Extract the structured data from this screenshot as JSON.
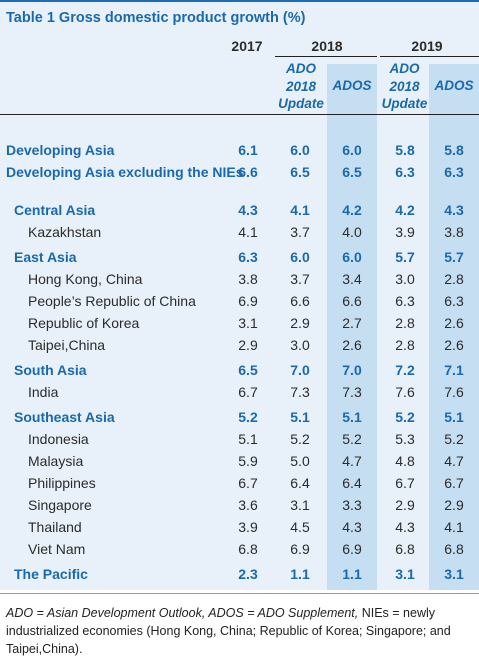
{
  "title": "Table 1  Gross domestic product growth (%)",
  "headers": {
    "y2017": "2017",
    "y2018": "2018",
    "y2019": "2019",
    "ado_2018": "ADO",
    "ado_2018_b": "2018",
    "ado_2018_c": "Update",
    "ados_2018": "ADOS",
    "ado_2019": "ADO",
    "ado_2019_b": "2018",
    "ado_2019_c": "Update",
    "ados_2019": "ADOS"
  },
  "rows": [
    {
      "label": "Developing Asia",
      "kind": "agg",
      "values": [
        "6.1",
        "6.0",
        "6.0",
        "5.8",
        "5.8"
      ]
    },
    {
      "label": "Developing Asia excluding the NIEs",
      "kind": "agg",
      "values": [
        "6.6",
        "6.5",
        "6.5",
        "6.3",
        "6.3"
      ]
    },
    {
      "label": "Central Asia",
      "kind": "sub",
      "values": [
        "4.3",
        "4.1",
        "4.2",
        "4.2",
        "4.3"
      ]
    },
    {
      "label": "Kazakhstan",
      "kind": "cty",
      "values": [
        "4.1",
        "3.7",
        "4.0",
        "3.9",
        "3.8"
      ]
    },
    {
      "label": "East Asia",
      "kind": "sub",
      "values": [
        "6.3",
        "6.0",
        "6.0",
        "5.7",
        "5.7"
      ]
    },
    {
      "label": "Hong Kong, China",
      "kind": "cty",
      "values": [
        "3.8",
        "3.7",
        "3.4",
        "3.0",
        "2.8"
      ]
    },
    {
      "label": "People’s Republic of China",
      "kind": "cty",
      "values": [
        "6.9",
        "6.6",
        "6.6",
        "6.3",
        "6.3"
      ]
    },
    {
      "label": "Republic of Korea",
      "kind": "cty",
      "values": [
        "3.1",
        "2.9",
        "2.7",
        "2.8",
        "2.6"
      ]
    },
    {
      "label": "Taipei,China",
      "kind": "cty",
      "values": [
        "2.9",
        "3.0",
        "2.6",
        "2.8",
        "2.6"
      ]
    },
    {
      "label": "South Asia",
      "kind": "sub",
      "values": [
        "6.5",
        "7.0",
        "7.0",
        "7.2",
        "7.1"
      ]
    },
    {
      "label": "India",
      "kind": "cty",
      "values": [
        "6.7",
        "7.3",
        "7.3",
        "7.6",
        "7.6"
      ]
    },
    {
      "label": "Southeast Asia",
      "kind": "sub",
      "values": [
        "5.2",
        "5.1",
        "5.1",
        "5.2",
        "5.1"
      ]
    },
    {
      "label": "Indonesia",
      "kind": "cty",
      "values": [
        "5.1",
        "5.2",
        "5.2",
        "5.3",
        "5.2"
      ]
    },
    {
      "label": "Malaysia",
      "kind": "cty",
      "values": [
        "5.9",
        "5.0",
        "4.7",
        "4.8",
        "4.7"
      ]
    },
    {
      "label": "Philippines",
      "kind": "cty",
      "values": [
        "6.7",
        "6.4",
        "6.4",
        "6.7",
        "6.7"
      ]
    },
    {
      "label": "Singapore",
      "kind": "cty",
      "values": [
        "3.6",
        "3.1",
        "3.3",
        "2.9",
        "2.9"
      ]
    },
    {
      "label": "Thailand",
      "kind": "cty",
      "values": [
        "3.9",
        "4.5",
        "4.3",
        "4.3",
        "4.1"
      ]
    },
    {
      "label": "Viet Nam",
      "kind": "cty",
      "values": [
        "6.8",
        "6.9",
        "6.9",
        "6.8",
        "6.8"
      ]
    },
    {
      "label": "The Pacific",
      "kind": "sub",
      "values": [
        "2.3",
        "1.1",
        "1.1",
        "3.1",
        "3.1"
      ]
    }
  ],
  "footnote": {
    "part1": "ADO = Asian Development Outlook, ADOS = ADO Supplement,",
    "part2": " NIEs = newly industrialized economies (Hong Kong, China; Republic of Korea; Singapore; and Taipei,China)."
  },
  "colors": {
    "accent": "#1a69ad",
    "band": "#e8f1f9",
    "highlight": "#c5def2"
  }
}
